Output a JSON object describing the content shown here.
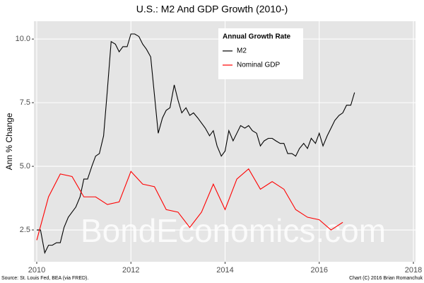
{
  "chart_data": {
    "type": "line",
    "title": "U.S.: M2 And GDP Growth (2010-)",
    "ylabel": "Ann % Change",
    "source": "Source: St. Louis Fed, BEA (via FRED).",
    "credit": "Chart (C) 2016 Brian Romanchuk",
    "watermark": "BondEconomics.com",
    "legend_title": "Annual Growth Rate",
    "legend": "top-right",
    "grid": true,
    "xlim": [
      2010,
      2018
    ],
    "xticks": [
      2010,
      2012,
      2014,
      2016,
      2018
    ],
    "ylim": [
      1.25,
      10.7
    ],
    "yticks": [
      2.5,
      {
        "value": 5,
        "label": "5.0"
      },
      7.5,
      {
        "value": 10,
        "label": "10.0"
      }
    ],
    "series": [
      {
        "name": "M2",
        "color": "#000000",
        "x": [
          2010,
          2010.08,
          2010.17,
          2010.25,
          2010.33,
          2010.42,
          2010.5,
          2010.58,
          2010.67,
          2010.75,
          2010.83,
          2010.92,
          2011,
          2011.08,
          2011.17,
          2011.25,
          2011.33,
          2011.42,
          2011.5,
          2011.58,
          2011.67,
          2011.75,
          2011.83,
          2011.92,
          2012,
          2012.08,
          2012.17,
          2012.25,
          2012.33,
          2012.42,
          2012.5,
          2012.58,
          2012.67,
          2012.75,
          2012.83,
          2012.92,
          2013,
          2013.08,
          2013.17,
          2013.25,
          2013.33,
          2013.42,
          2013.5,
          2013.58,
          2013.67,
          2013.75,
          2013.83,
          2013.92,
          2014,
          2014.08,
          2014.17,
          2014.25,
          2014.33,
          2014.42,
          2014.5,
          2014.58,
          2014.67,
          2014.75,
          2014.83,
          2014.92,
          2015,
          2015.08,
          2015.17,
          2015.25,
          2015.33,
          2015.42,
          2015.5,
          2015.58,
          2015.67,
          2015.75,
          2015.83,
          2015.92,
          2016,
          2016.08,
          2016.17,
          2016.25,
          2016.33,
          2016.42,
          2016.5,
          2016.58,
          2016.67,
          2016.75
        ],
        "values": [
          2.5,
          2.5,
          1.6,
          1.9,
          1.9,
          2.0,
          2.0,
          2.6,
          3.0,
          3.2,
          3.4,
          3.8,
          4.5,
          4.5,
          5.0,
          5.4,
          5.5,
          6.2,
          8.0,
          9.9,
          9.8,
          9.5,
          9.7,
          9.7,
          10.2,
          10.2,
          10.1,
          9.8,
          9.6,
          9.3,
          7.8,
          6.3,
          6.9,
          7.2,
          7.3,
          8.2,
          7.6,
          7.1,
          7.3,
          7.0,
          7.1,
          6.9,
          6.7,
          6.5,
          6.2,
          6.4,
          5.8,
          5.4,
          5.6,
          6.4,
          6.0,
          6.3,
          6.6,
          6.5,
          6.6,
          6.4,
          6.3,
          5.8,
          6.0,
          6.1,
          6.1,
          6.0,
          5.9,
          5.9,
          5.5,
          5.5,
          5.4,
          5.7,
          5.9,
          5.7,
          6.1,
          5.9,
          6.3,
          5.8,
          6.2,
          6.5,
          6.8,
          7.0,
          7.1,
          7.4,
          7.4,
          7.9
        ]
      },
      {
        "name": "Nominal GDP",
        "color": "#ff0000",
        "x": [
          2010,
          2010.25,
          2010.5,
          2010.75,
          2011,
          2011.25,
          2011.5,
          2011.75,
          2012,
          2012.25,
          2012.5,
          2012.75,
          2013,
          2013.25,
          2013.5,
          2013.75,
          2014,
          2014.25,
          2014.5,
          2014.75,
          2015,
          2015.25,
          2015.5,
          2015.75,
          2016,
          2016.25,
          2016.5
        ],
        "values": [
          2.1,
          3.8,
          4.7,
          4.6,
          3.8,
          3.8,
          3.5,
          3.6,
          4.8,
          4.3,
          4.2,
          3.3,
          3.2,
          2.6,
          3.2,
          4.3,
          3.3,
          4.5,
          4.9,
          4.1,
          4.4,
          4.1,
          3.3,
          3.0,
          2.9,
          2.5,
          2.8
        ]
      }
    ]
  }
}
